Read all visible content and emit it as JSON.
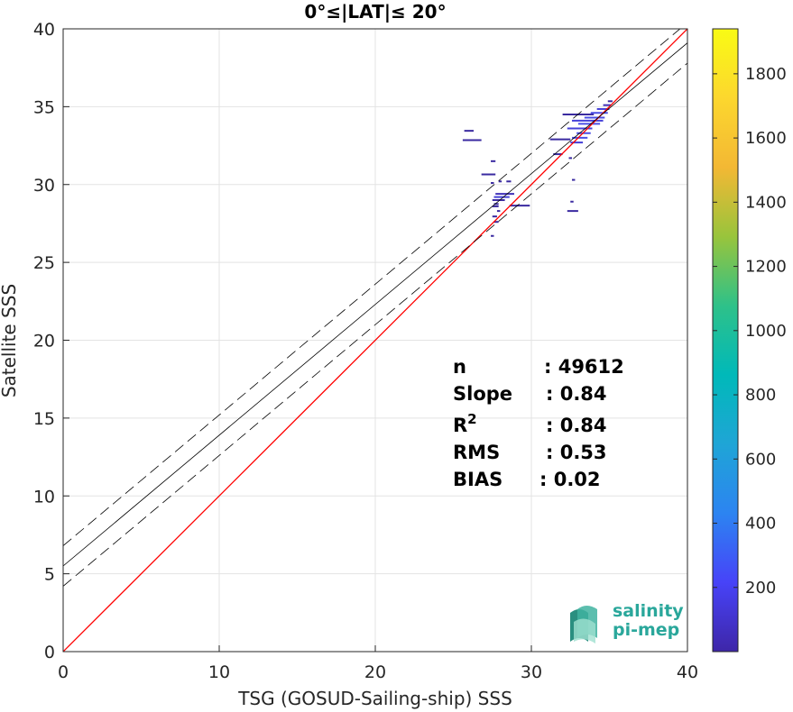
{
  "chart_data": {
    "type": "scatter",
    "title": "0°≤|LAT|≤ 20°",
    "xlabel": "TSG (GOSUD-Sailing-ship) SSS",
    "ylabel": "Satellite SSS",
    "xlim": [
      0,
      40
    ],
    "ylim": [
      0,
      40
    ],
    "x_ticks": [
      "0",
      "10",
      "20",
      "30",
      "40"
    ],
    "y_ticks": [
      "0",
      "5",
      "10",
      "15",
      "20",
      "25",
      "30",
      "35",
      "40"
    ],
    "grid": true,
    "identity_line": {
      "slope": 1,
      "intercept": 0,
      "color": "#ff0000"
    },
    "fit_line": {
      "slope": 0.84,
      "intercept": 5.5,
      "color": "#000000"
    },
    "fit_band_offset": 1.3,
    "stats": [
      {
        "label": "n",
        "value": ": 49612"
      },
      {
        "label": "Slope",
        "value": ": 0.84"
      },
      {
        "label": "R",
        "sup": "2",
        "value": ": 0.84"
      },
      {
        "label": "RMS",
        "value": ": 0.53"
      },
      {
        "label": "BIAS",
        "value": ": 0.02"
      }
    ],
    "colorbar": {
      "min": 0,
      "max": 1940,
      "ticks": [
        "200",
        "400",
        "600",
        "800",
        "1000",
        "1200",
        "1400",
        "1600",
        "1800"
      ],
      "colormap": [
        "#3e26a8",
        "#4743f8",
        "#2c84f1",
        "#1fa5d6",
        "#00b9b9",
        "#2ec189",
        "#99c43c",
        "#f3b834",
        "#fcd72e",
        "#f9fb14"
      ]
    },
    "density_segments": [
      {
        "x0": 25.7,
        "x1": 26.3,
        "y": 33.45,
        "c": "#3a2aa0"
      },
      {
        "x0": 25.6,
        "x1": 26.8,
        "y": 32.85,
        "c": "#3a2aa0"
      },
      {
        "x0": 27.4,
        "x1": 27.7,
        "y": 31.5,
        "c": "#3a2aa0"
      },
      {
        "x0": 26.8,
        "x1": 27.7,
        "y": 30.65,
        "c": "#3a2aa0"
      },
      {
        "x0": 27.9,
        "x1": 28.1,
        "y": 30.2,
        "c": "#3a2aa0"
      },
      {
        "x0": 28.4,
        "x1": 28.7,
        "y": 30.2,
        "c": "#3a2aa0"
      },
      {
        "x0": 27.4,
        "x1": 27.6,
        "y": 30.1,
        "c": "#3a2aa0"
      },
      {
        "x0": 27.7,
        "x1": 28.9,
        "y": 29.4,
        "c": "#3f30b8"
      },
      {
        "x0": 27.6,
        "x1": 28.6,
        "y": 29.2,
        "c": "#4540d8"
      },
      {
        "x0": 27.5,
        "x1": 28.3,
        "y": 29.0,
        "c": "#3a2aa0"
      },
      {
        "x0": 27.6,
        "x1": 27.9,
        "y": 28.75,
        "c": "#3a2aa0"
      },
      {
        "x0": 27.5,
        "x1": 27.9,
        "y": 28.6,
        "c": "#3a2aa0"
      },
      {
        "x0": 28.6,
        "x1": 29.9,
        "y": 28.65,
        "c": "#3a2aa0"
      },
      {
        "x0": 27.8,
        "x1": 28.0,
        "y": 28.3,
        "c": "#3a2aa0"
      },
      {
        "x0": 27.5,
        "x1": 27.8,
        "y": 27.95,
        "c": "#3a2aa0"
      },
      {
        "x0": 27.6,
        "x1": 27.9,
        "y": 27.6,
        "c": "#3a2aa0"
      },
      {
        "x0": 27.4,
        "x1": 27.6,
        "y": 26.7,
        "c": "#3a2aa0"
      },
      {
        "x0": 32.3,
        "x1": 33.0,
        "y": 28.3,
        "c": "#3a2aa0"
      },
      {
        "x0": 32.5,
        "x1": 32.7,
        "y": 28.9,
        "c": "#3a2aa0"
      },
      {
        "x0": 32.6,
        "x1": 32.8,
        "y": 30.3,
        "c": "#3a2aa0"
      },
      {
        "x0": 32.4,
        "x1": 32.6,
        "y": 31.7,
        "c": "#3a2aa0"
      },
      {
        "x0": 31.2,
        "x1": 32.5,
        "y": 32.9,
        "c": "#3a2aa0"
      },
      {
        "x0": 31.4,
        "x1": 32.0,
        "y": 31.95,
        "c": "#3a2aa0"
      },
      {
        "x0": 32.5,
        "x1": 33.3,
        "y": 32.7,
        "c": "#4540d8"
      },
      {
        "x0": 32.6,
        "x1": 33.6,
        "y": 33.0,
        "c": "#4a4fe6"
      },
      {
        "x0": 32.9,
        "x1": 33.8,
        "y": 33.3,
        "c": "#4a4fe6"
      },
      {
        "x0": 32.3,
        "x1": 33.9,
        "y": 33.6,
        "c": "#4540d8"
      },
      {
        "x0": 33.0,
        "x1": 34.4,
        "y": 33.9,
        "c": "#4a4fe6"
      },
      {
        "x0": 32.6,
        "x1": 34.6,
        "y": 34.1,
        "c": "#4540d8"
      },
      {
        "x0": 33.4,
        "x1": 34.7,
        "y": 34.3,
        "c": "#4a4fe6"
      },
      {
        "x0": 32.0,
        "x1": 34.0,
        "y": 34.5,
        "c": "#3a2aa0"
      },
      {
        "x0": 33.8,
        "x1": 34.9,
        "y": 34.6,
        "c": "#4a4fe6"
      },
      {
        "x0": 34.2,
        "x1": 35.0,
        "y": 34.85,
        "c": "#4540d8"
      },
      {
        "x0": 34.6,
        "x1": 35.1,
        "y": 35.1,
        "c": "#3f30b8"
      },
      {
        "x0": 34.9,
        "x1": 35.2,
        "y": 35.35,
        "c": "#3a2aa0"
      }
    ]
  },
  "logo": {
    "line1": "salinity",
    "line2": "pi-mep"
  }
}
